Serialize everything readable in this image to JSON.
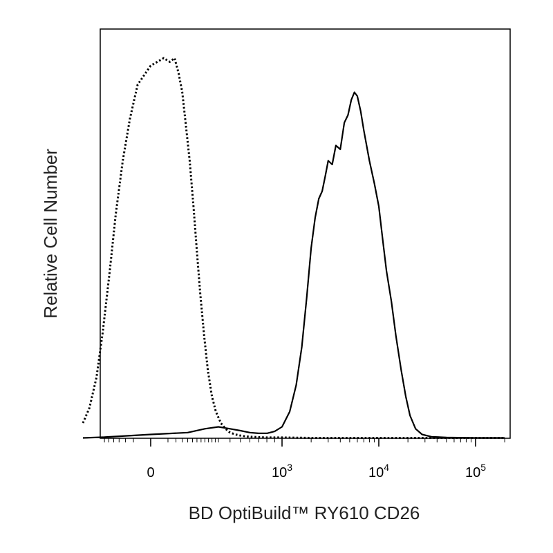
{
  "chart_data": {
    "type": "line",
    "title": "",
    "xlabel": "BD OptiBuild™ RY610 CD26",
    "ylabel": "Relative Cell Number",
    "x_scale": "biexponential",
    "xlim": [
      -300,
      200000
    ],
    "ylim": [
      0,
      100
    ],
    "grid": false,
    "legend": "none",
    "x_ticks": [
      {
        "value": 0,
        "base": "0",
        "exp": ""
      },
      {
        "value": 1000,
        "base": "10",
        "exp": "3"
      },
      {
        "value": 10000,
        "base": "10",
        "exp": "4"
      },
      {
        "value": 100000,
        "base": "10",
        "exp": "5"
      }
    ],
    "series": [
      {
        "style": "dotted",
        "color": "#000000",
        "x": [
          -300,
          -250,
          -200,
          -160,
          -120,
          -90,
          -60,
          -35,
          -15,
          0,
          15,
          30,
          45,
          60,
          75,
          90,
          110,
          130,
          150,
          170,
          195,
          220,
          250,
          280,
          320,
          360,
          400,
          450,
          520,
          600,
          700,
          800,
          1000,
          2000,
          5000,
          10000,
          30000,
          100000,
          200000
        ],
        "y": [
          4,
          8,
          16,
          28,
          44,
          59,
          73,
          84,
          93,
          98,
          100,
          99,
          100,
          96,
          91,
          83,
          73,
          61,
          49,
          38,
          27,
          18,
          11,
          7,
          4,
          2.5,
          1.5,
          1,
          0.6,
          0.4,
          0.3,
          0.2,
          0.2,
          0.1,
          0.1,
          0.1,
          0.1,
          0.1,
          0.1
        ]
      },
      {
        "style": "solid",
        "color": "#000000",
        "x": [
          -300,
          -150,
          0,
          100,
          200,
          300,
          400,
          500,
          600,
          700,
          800,
          900,
          1000,
          1200,
          1400,
          1600,
          1800,
          2000,
          2200,
          2400,
          2600,
          2800,
          3000,
          3300,
          3600,
          4000,
          4400,
          4800,
          5200,
          5600,
          6000,
          6500,
          7000,
          8000,
          9000,
          10000,
          11000,
          12000,
          13500,
          15000,
          17000,
          19000,
          21000,
          24000,
          28000,
          35000,
          50000,
          100000,
          200000
        ],
        "y": [
          0.1,
          0.3,
          1,
          1.5,
          2.5,
          3,
          2.5,
          2,
          1.5,
          1.3,
          1.3,
          1.8,
          3,
          7,
          14,
          24,
          37,
          50,
          58,
          63,
          65,
          69,
          73,
          72,
          77,
          76,
          83,
          85,
          89,
          91,
          90,
          86,
          81,
          73,
          67,
          61,
          52,
          44,
          36,
          27,
          18,
          11,
          6,
          2.5,
          1,
          0.4,
          0.2,
          0.1,
          0.1
        ]
      }
    ]
  }
}
